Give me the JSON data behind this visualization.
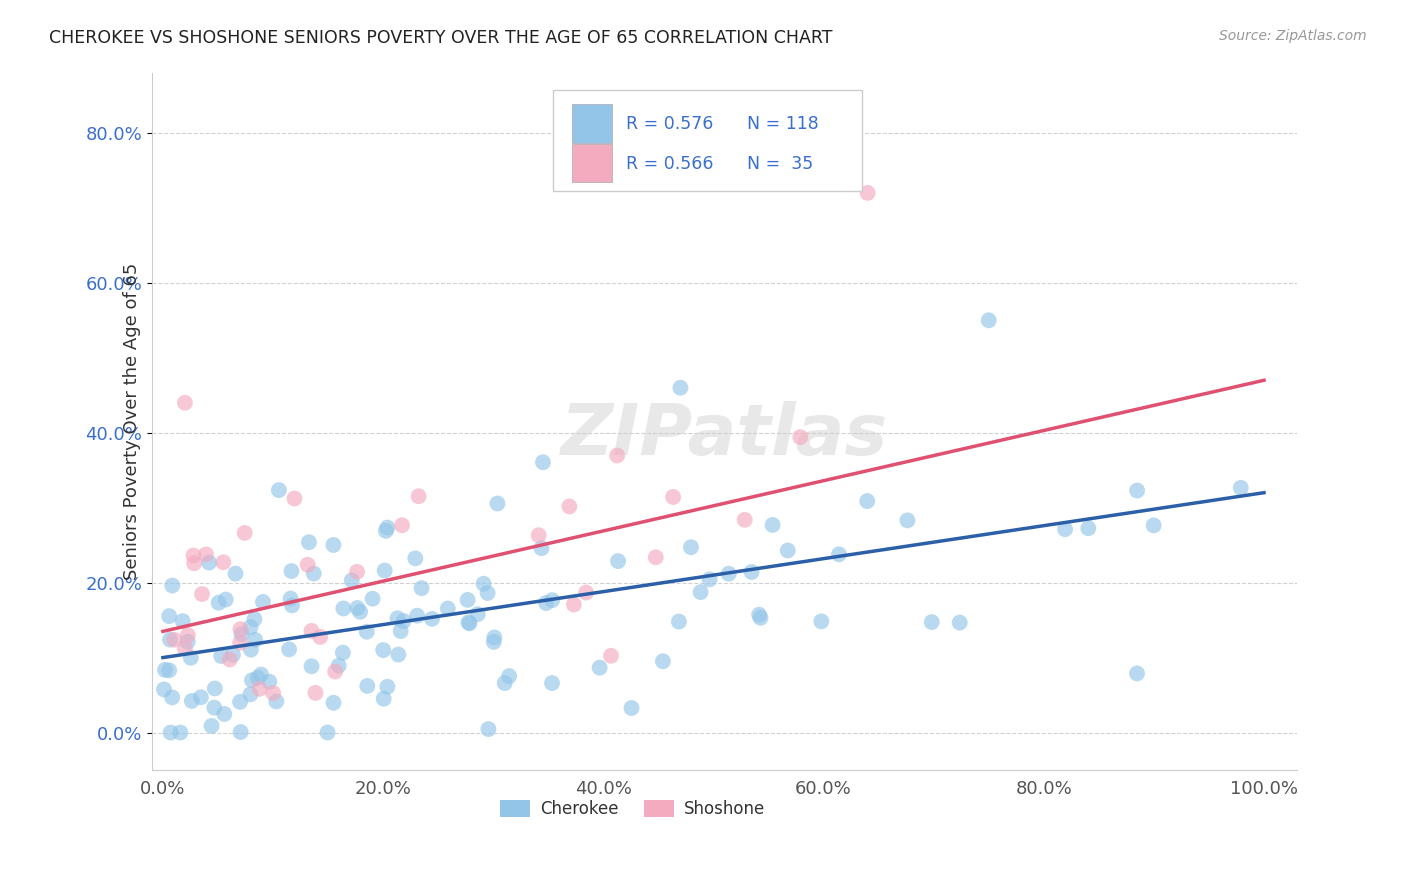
{
  "title": "CHEROKEE VS SHOSHONE SENIORS POVERTY OVER THE AGE OF 65 CORRELATION CHART",
  "source": "Source: ZipAtlas.com",
  "ylabel": "Seniors Poverty Over the Age of 65",
  "background_color": "#ffffff",
  "grid_color": "#cccccc",
  "cherokee_color": "#92C5E8",
  "shoshone_color": "#F4AABF",
  "cherokee_line_color": "#2B5FA8",
  "shoshone_line_color": "#E05070",
  "cherokee_R": 0.576,
  "cherokee_N": 118,
  "shoshone_R": 0.566,
  "shoshone_N": 35,
  "yticks": [
    0.0,
    0.2,
    0.4,
    0.6,
    0.8
  ],
  "ytick_labels": [
    "0.0%",
    "20.0%",
    "40.0%",
    "60.0%",
    "80.0%"
  ],
  "xticks": [
    0.0,
    0.2,
    0.4,
    0.6,
    0.8,
    1.0
  ],
  "xtick_labels": [
    "0.0%",
    "20.0%",
    "40.0%",
    "60.0%",
    "80.0%",
    "100.0%"
  ],
  "cherokee_line_x0": 0.0,
  "cherokee_line_y0": 0.1,
  "cherokee_line_x1": 1.0,
  "cherokee_line_y1": 0.32,
  "shoshone_line_x0": 0.0,
  "shoshone_line_y0": 0.135,
  "shoshone_line_x1": 1.0,
  "shoshone_line_y1": 0.47,
  "xlim": [
    -0.01,
    1.03
  ],
  "ylim": [
    -0.05,
    0.88
  ]
}
